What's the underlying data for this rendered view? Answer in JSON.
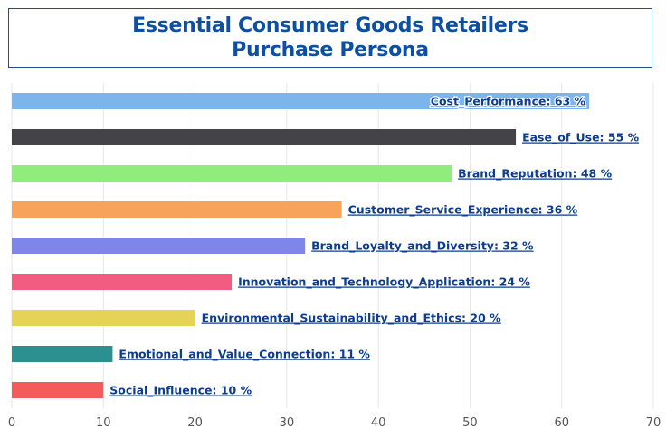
{
  "title": {
    "line1": "Essential Consumer Goods Retailers",
    "line2": "Purchase Persona"
  },
  "chart_data": {
    "type": "bar",
    "orientation": "horizontal",
    "categories": [
      "Cost_Performance",
      "Ease_of_Use",
      "Brand_Reputation",
      "Customer_Service_Experience",
      "Brand_Loyalty_and_Diversity",
      "Innovation_and_Technology_Application",
      "Environmental_Sustainability_and_Ethics",
      "Emotional_and_Value_Connection",
      "Social_Influence"
    ],
    "values": [
      63,
      55,
      48,
      36,
      32,
      24,
      20,
      11,
      10
    ],
    "colors": [
      "#7cb5ec",
      "#434348",
      "#90ed7d",
      "#f7a35c",
      "#8085e9",
      "#f15c80",
      "#e4d354",
      "#2b908f",
      "#f45b5b"
    ],
    "value_suffix": " %",
    "xlim": [
      0,
      70
    ],
    "xticks": [
      0,
      10,
      20,
      30,
      40,
      50,
      60,
      70
    ],
    "grid": true,
    "legend": "none"
  }
}
